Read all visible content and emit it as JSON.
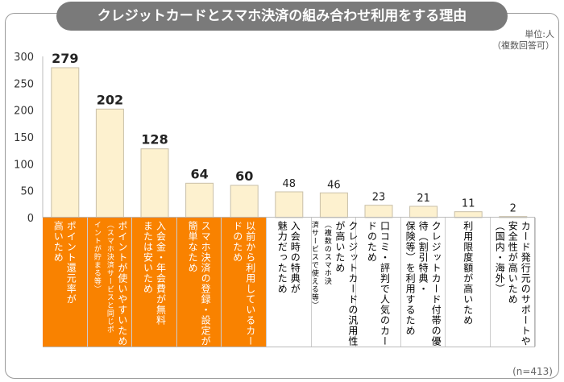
{
  "chart_data": {
    "type": "bar",
    "title": "クレジットカードとスマホ決済の組み合わせ利用をする理由",
    "unit_note": [
      "単位:人",
      "（複数回答可）"
    ],
    "sample_note": "(n=413)",
    "ylim": [
      0,
      300
    ],
    "yticks": [
      0,
      50,
      100,
      150,
      200,
      250,
      300
    ],
    "grid": false,
    "highlight_color": "#f98200",
    "bar_color": "#fdf1cf",
    "values": [
      279,
      202,
      128,
      64,
      60,
      48,
      46,
      23,
      21,
      11,
      2
    ],
    "categories": [
      {
        "lines": [
          "ポイント還元率が",
          "高いため"
        ],
        "small": [],
        "highlight": true
      },
      {
        "lines": [
          "ポイントが使いやすいため"
        ],
        "small": [
          "（スマホ決済サービスと同じポ",
          "イントが貯まる等）"
        ],
        "highlight": true
      },
      {
        "lines": [
          "入会金・年会費が無料",
          "または安いため"
        ],
        "small": [],
        "highlight": true
      },
      {
        "lines": [
          "スマホ決済の登録・設定が",
          "簡単なため"
        ],
        "small": [],
        "highlight": true
      },
      {
        "lines": [
          "以前から利用しているカー",
          "ドのため"
        ],
        "small": [],
        "highlight": true
      },
      {
        "lines": [
          "入会時の特典が",
          "魅力だったため"
        ],
        "small": [],
        "highlight": false
      },
      {
        "lines": [
          "クレジットカードの汎用性",
          "が高いため"
        ],
        "small": [
          "（複数のスマホ決",
          "済サービスで使える等）"
        ],
        "highlight": false
      },
      {
        "lines": [
          "口コミ・評判で人気のカー",
          "ドのため"
        ],
        "small": [],
        "highlight": false
      },
      {
        "lines": [
          "クレジットカード付帯の優",
          "待（割引特典・",
          "保険等）を利用するため"
        ],
        "small": [],
        "highlight": false
      },
      {
        "lines": [
          "利用限度額が高いため"
        ],
        "small": [],
        "highlight": false
      },
      {
        "lines": [
          "カード発行元のサポートや",
          "安全性が高いため",
          "（国内・海外）"
        ],
        "small": [],
        "highlight": false
      }
    ]
  }
}
